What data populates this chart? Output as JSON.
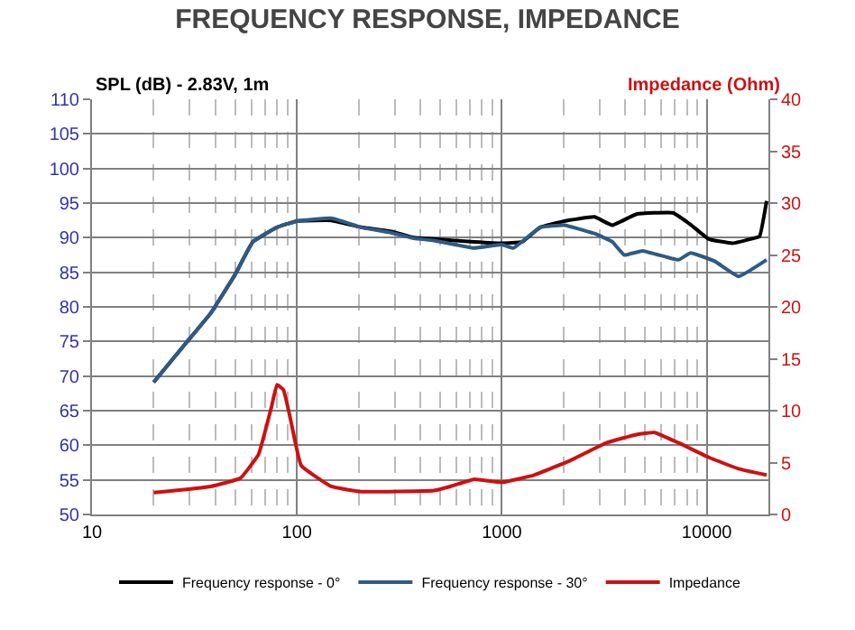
{
  "chart_data": {
    "type": "line",
    "title": "FREQUENCY RESPONSE, IMPEDANCE",
    "ylabel": "SPL (dB) - 2.83V, 1m",
    "y2label": "Impedance (Ohm)",
    "log": "x",
    "xlim": [
      10,
      20000
    ],
    "xticks": [
      10,
      100,
      1000,
      10000
    ],
    "ylim": [
      50,
      110
    ],
    "yticks": [
      50,
      55,
      60,
      65,
      70,
      75,
      80,
      85,
      90,
      95,
      100,
      105,
      110
    ],
    "y2lim": [
      0,
      40
    ],
    "y2ticks": [
      0,
      5,
      10,
      15,
      20,
      25,
      30,
      35,
      40
    ],
    "grid": true,
    "legend": "bottom",
    "series": [
      {
        "name": "Frequency response - 0°",
        "color": "#000000",
        "x": [
          20,
          29,
          38,
          50,
          61,
          80,
          100,
          147,
          206,
          290,
          373,
          466,
          733,
          1000,
          1258,
          1540,
          2020,
          2830,
          3460,
          4540,
          6810,
          8340,
          10230,
          13360,
          16340,
          18100,
          19600
        ],
        "values": [
          69.1,
          74.9,
          79.1,
          84.7,
          89.4,
          91.5,
          92.4,
          92.5,
          91.5,
          90.9,
          90.0,
          89.8,
          89.4,
          89.2,
          89.4,
          91.5,
          92.4,
          93.0,
          91.8,
          93.4,
          93.6,
          91.9,
          89.8,
          89.2,
          89.8,
          90.2,
          95.3
        ]
      },
      {
        "name": "Frequency response - 30°",
        "color": "#2e5a87",
        "x": [
          20,
          29,
          38,
          50,
          61,
          80,
          100,
          147,
          206,
          290,
          373,
          466,
          733,
          1000,
          1137,
          1540,
          2020,
          2830,
          3460,
          3960,
          4860,
          6360,
          7290,
          8340,
          10930,
          14290,
          19600
        ],
        "values": [
          69.1,
          74.9,
          79.1,
          84.7,
          89.4,
          91.5,
          92.4,
          92.8,
          91.5,
          90.7,
          89.9,
          89.6,
          88.5,
          89.0,
          88.5,
          91.5,
          91.8,
          90.6,
          89.4,
          87.5,
          88.1,
          87.2,
          86.8,
          87.8,
          86.6,
          84.4,
          86.8
        ]
      },
      {
        "name": "Impedance",
        "color": "#cc1111",
        "axis": "y2",
        "x": [
          20,
          38,
          53,
          65,
          75,
          80,
          86,
          93,
          105,
          147,
          206,
          466,
          560,
          733,
          1000,
          1440,
          2160,
          3240,
          4540,
          5560,
          7290,
          10230,
          14290,
          19600
        ],
        "values": [
          2.1,
          2.7,
          3.5,
          5.8,
          10.3,
          12.5,
          12.0,
          9.2,
          4.7,
          2.7,
          2.2,
          2.3,
          2.7,
          3.4,
          3.1,
          3.8,
          5.2,
          6.9,
          7.7,
          7.9,
          6.9,
          5.5,
          4.4,
          3.8
        ]
      }
    ]
  }
}
